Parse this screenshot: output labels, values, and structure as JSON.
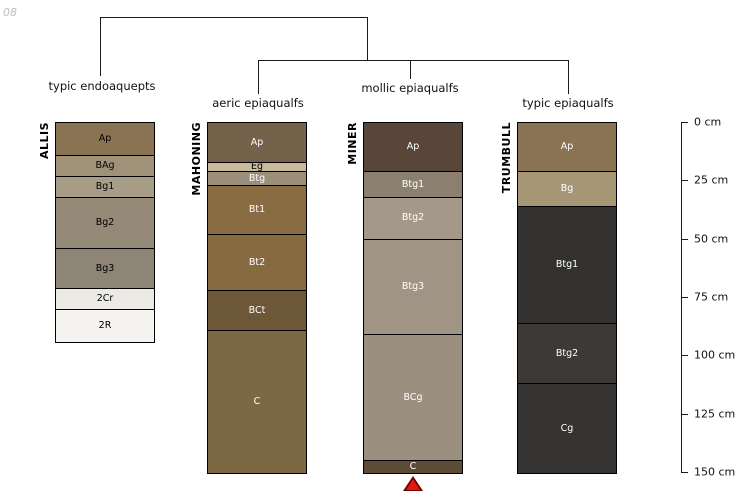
{
  "page": {
    "corner_label": "08"
  },
  "dendrogram": {
    "classifications": [
      "typic endoaquepts",
      "aeric epiaqualfs",
      "mollic epiaqualfs",
      "typic epiaqualfs"
    ]
  },
  "profiles": [
    {
      "name": "ALLIS",
      "classification": "typic endoaquepts",
      "horizons": [
        {
          "label": "Ap",
          "top_cm": 0,
          "bottom_cm": 14,
          "color": "#8a7352",
          "text_color": "#000000"
        },
        {
          "label": "BAg",
          "top_cm": 14,
          "bottom_cm": 23,
          "color": "#9f9278",
          "text_color": "#000000"
        },
        {
          "label": "Bg1",
          "top_cm": 23,
          "bottom_cm": 32,
          "color": "#a89d86",
          "text_color": "#000000"
        },
        {
          "label": "Bg2",
          "top_cm": 32,
          "bottom_cm": 54,
          "color": "#948a77",
          "text_color": "#000000"
        },
        {
          "label": "Bg3",
          "top_cm": 54,
          "bottom_cm": 71,
          "color": "#8e8576",
          "text_color": "#000000"
        },
        {
          "label": "2Cr",
          "top_cm": 71,
          "bottom_cm": 80,
          "color": "#eceae5",
          "text_color": "#000000"
        },
        {
          "label": "2R",
          "top_cm": 80,
          "bottom_cm": 94,
          "color": "#f5f4f0",
          "text_color": "#000000"
        }
      ]
    },
    {
      "name": "MAHONING",
      "classification": "aeric epiaqualfs",
      "horizons": [
        {
          "label": "Ap",
          "top_cm": 0,
          "bottom_cm": 17,
          "color": "#74624a",
          "text_color": "#ffffff"
        },
        {
          "label": "Eg",
          "top_cm": 17,
          "bottom_cm": 21,
          "color": "#c9b99d",
          "text_color": "#000000"
        },
        {
          "label": "Btg",
          "top_cm": 21,
          "bottom_cm": 27,
          "color": "#9b8e7b",
          "text_color": "#ffffff"
        },
        {
          "label": "Bt1",
          "top_cm": 27,
          "bottom_cm": 48,
          "color": "#8a6c42",
          "text_color": "#ffffff"
        },
        {
          "label": "Bt2",
          "top_cm": 48,
          "bottom_cm": 72,
          "color": "#876a40",
          "text_color": "#ffffff"
        },
        {
          "label": "BCt",
          "top_cm": 72,
          "bottom_cm": 89,
          "color": "#6c5736",
          "text_color": "#ffffff"
        },
        {
          "label": "C",
          "top_cm": 89,
          "bottom_cm": 150,
          "color": "#7d6845",
          "text_color": "#ffffff"
        }
      ]
    },
    {
      "name": "MINER",
      "classification": "mollic epiaqualfs",
      "marker": true,
      "horizons": [
        {
          "label": "Ap",
          "top_cm": 0,
          "bottom_cm": 21,
          "color": "#574639",
          "text_color": "#ffffff"
        },
        {
          "label": "Btg1",
          "top_cm": 21,
          "bottom_cm": 32,
          "color": "#8b8070",
          "text_color": "#ffffff"
        },
        {
          "label": "Btg2",
          "top_cm": 32,
          "bottom_cm": 50,
          "color": "#a39889",
          "text_color": "#ffffff"
        },
        {
          "label": "Btg3",
          "top_cm": 50,
          "bottom_cm": 91,
          "color": "#a09585",
          "text_color": "#ffffff"
        },
        {
          "label": "BCg",
          "top_cm": 91,
          "bottom_cm": 145,
          "color": "#9b9080",
          "text_color": "#ffffff"
        },
        {
          "label": "C",
          "top_cm": 145,
          "bottom_cm": 150,
          "color": "#5c4c37",
          "text_color": "#ffffff"
        }
      ]
    },
    {
      "name": "TRUMBULL",
      "classification": "typic epiaqualfs",
      "horizons": [
        {
          "label": "Ap",
          "top_cm": 0,
          "bottom_cm": 21,
          "color": "#8a7352",
          "text_color": "#ffffff"
        },
        {
          "label": "Bg",
          "top_cm": 21,
          "bottom_cm": 36,
          "color": "#a59776",
          "text_color": "#ffffff"
        },
        {
          "label": "Btg1",
          "top_cm": 36,
          "bottom_cm": 86,
          "color": "#343230",
          "text_color": "#ffffff"
        },
        {
          "label": "Btg2",
          "top_cm": 86,
          "bottom_cm": 112,
          "color": "#3c3936",
          "text_color": "#ffffff"
        },
        {
          "label": "Cg",
          "top_cm": 112,
          "bottom_cm": 150,
          "color": "#353331",
          "text_color": "#ffffff"
        }
      ]
    }
  ],
  "depth_axis": {
    "unit": "cm",
    "max_cm": 150,
    "ticks": [
      {
        "cm": 0,
        "label": "0 cm"
      },
      {
        "cm": 25,
        "label": "25 cm"
      },
      {
        "cm": 50,
        "label": "50 cm"
      },
      {
        "cm": 75,
        "label": "75 cm"
      },
      {
        "cm": 100,
        "label": "100 cm"
      },
      {
        "cm": 125,
        "label": "125 cm"
      },
      {
        "cm": 150,
        "label": "150 cm"
      }
    ]
  },
  "marker": {
    "shape": "triangle-up",
    "fill": "#e3170d",
    "outline": "#6b0000"
  }
}
